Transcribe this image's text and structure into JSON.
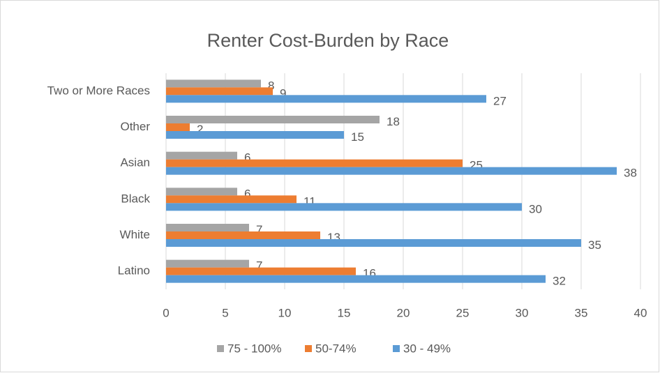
{
  "chart_data": {
    "type": "bar",
    "orientation": "horizontal",
    "title": "Renter Cost-Burden by Race",
    "categories": [
      "Two or More Races",
      "Other",
      "Asian",
      "Black",
      "White",
      "Latino"
    ],
    "series": [
      {
        "name": "75 - 100%",
        "color": "#a5a5a5",
        "values": [
          8,
          18,
          6,
          6,
          7,
          7
        ]
      },
      {
        "name": "50-74%",
        "color": "#ed7d31",
        "values": [
          9,
          2,
          25,
          11,
          13,
          16
        ]
      },
      {
        "name": "30 - 49%",
        "color": "#5b9bd5",
        "values": [
          27,
          15,
          38,
          30,
          35,
          32
        ]
      }
    ],
    "xlim": [
      0,
      40
    ],
    "xticks": [
      0,
      5,
      10,
      15,
      20,
      25,
      30,
      35,
      40
    ],
    "grid": true,
    "legend": "bottom"
  }
}
